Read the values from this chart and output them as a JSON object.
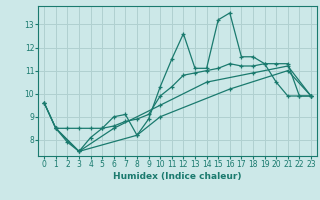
{
  "xlabel": "Humidex (Indice chaleur)",
  "background_color": "#cce8e8",
  "grid_color": "#b0d0d0",
  "line_color": "#1a7a6e",
  "xlim": [
    -0.5,
    23.5
  ],
  "ylim": [
    7.3,
    13.8
  ],
  "yticks": [
    8,
    9,
    10,
    11,
    12,
    13
  ],
  "xticks": [
    0,
    1,
    2,
    3,
    4,
    5,
    6,
    7,
    8,
    9,
    10,
    11,
    12,
    13,
    14,
    15,
    16,
    17,
    18,
    19,
    20,
    21,
    22,
    23
  ],
  "s1": [
    [
      0,
      9.6
    ],
    [
      1,
      8.5
    ],
    [
      2,
      7.9
    ],
    [
      3,
      7.5
    ],
    [
      4,
      8.1
    ],
    [
      5,
      8.5
    ],
    [
      6,
      9.0
    ],
    [
      7,
      9.1
    ],
    [
      8,
      8.2
    ],
    [
      9,
      8.9
    ],
    [
      10,
      10.3
    ],
    [
      11,
      11.5
    ],
    [
      12,
      12.6
    ],
    [
      13,
      11.1
    ],
    [
      14,
      11.1
    ],
    [
      15,
      13.2
    ],
    [
      16,
      13.5
    ],
    [
      17,
      11.6
    ],
    [
      18,
      11.6
    ],
    [
      19,
      11.3
    ],
    [
      20,
      10.5
    ],
    [
      21,
      9.9
    ],
    [
      22,
      9.9
    ],
    [
      23,
      9.9
    ]
  ],
  "s2": [
    [
      0,
      9.6
    ],
    [
      1,
      8.5
    ],
    [
      2,
      8.5
    ],
    [
      3,
      8.5
    ],
    [
      4,
      8.5
    ],
    [
      5,
      8.5
    ],
    [
      6,
      8.6
    ],
    [
      7,
      8.8
    ],
    [
      8,
      8.9
    ],
    [
      9,
      9.1
    ],
    [
      10,
      9.9
    ],
    [
      11,
      10.3
    ],
    [
      12,
      10.8
    ],
    [
      13,
      10.9
    ],
    [
      14,
      11.0
    ],
    [
      15,
      11.1
    ],
    [
      16,
      11.3
    ],
    [
      17,
      11.2
    ],
    [
      18,
      11.2
    ],
    [
      19,
      11.3
    ],
    [
      20,
      11.3
    ],
    [
      21,
      11.3
    ],
    [
      22,
      9.9
    ],
    [
      23,
      9.9
    ]
  ],
  "s3": [
    [
      0,
      9.6
    ],
    [
      1,
      8.5
    ],
    [
      3,
      7.5
    ],
    [
      6,
      8.5
    ],
    [
      10,
      9.5
    ],
    [
      14,
      10.5
    ],
    [
      18,
      10.9
    ],
    [
      21,
      11.2
    ],
    [
      23,
      9.9
    ]
  ],
  "s4": [
    [
      1,
      8.5
    ],
    [
      3,
      7.5
    ],
    [
      8,
      8.2
    ],
    [
      10,
      9.0
    ],
    [
      16,
      10.2
    ],
    [
      21,
      11.0
    ],
    [
      23,
      9.9
    ]
  ]
}
